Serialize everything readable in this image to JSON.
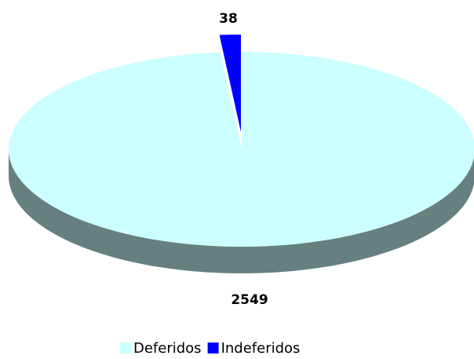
{
  "chart_data": {
    "type": "pie",
    "categories": [
      "Deferidos",
      "Indeferidos"
    ],
    "values": [
      2549,
      38
    ],
    "colors": [
      "#ccffff",
      "#0000ff"
    ]
  }
}
